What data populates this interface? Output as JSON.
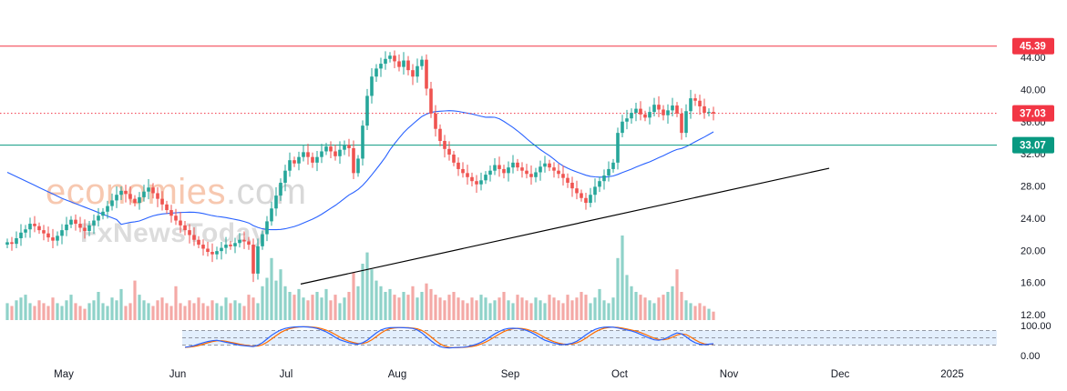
{
  "watermark": {
    "line1_a": "economies",
    "line1_b": ".com",
    "line2": "FxNewsToday"
  },
  "colors": {
    "up": "#26a69a",
    "down": "#ef5350",
    "up_vol": "#8fd2c9",
    "down_vol": "#f4a9a6",
    "ma": "#2962ff",
    "resistance": "#f23645",
    "support": "#089981",
    "current": "#f23645",
    "trendline": "#000000",
    "stoch_k": "#2962ff",
    "stoch_d": "#ff6d00",
    "stoch_band": "#e3effd"
  },
  "chart_data": {
    "type": "candlestick",
    "price_axis": {
      "min": 12,
      "max": 46,
      "ticks": [
        "44.00",
        "40.00",
        "36.00",
        "32.00",
        "28.00",
        "24.00",
        "20.00",
        "16.00",
        "12.00"
      ]
    },
    "oscillator_axis": {
      "ticks": [
        "100.00",
        "0.00"
      ],
      "upper_band": 80,
      "lower_band": 20
    },
    "time_axis": [
      "May",
      "Jun",
      "Jul",
      "Aug",
      "Sep",
      "Oct",
      "Nov",
      "Dec",
      "2025"
    ],
    "levels": [
      {
        "name": "resistance",
        "value": 45.39,
        "label": "45.39"
      },
      {
        "name": "current",
        "value": 37.03,
        "label": "37.03"
      },
      {
        "name": "support",
        "value": 33.07,
        "label": "33.07"
      }
    ],
    "trendline": {
      "from": [
        "Jul 5",
        15.8
      ],
      "to": [
        "Dec 5",
        30.2
      ]
    },
    "closes": [
      21.0,
      20.8,
      21.5,
      22.2,
      22.6,
      23.3,
      23.0,
      22.5,
      22.1,
      21.6,
      21.2,
      21.8,
      22.5,
      23.2,
      23.8,
      23.3,
      22.8,
      22.4,
      23.1,
      23.7,
      24.3,
      24.8,
      25.5,
      26.2,
      26.9,
      27.4,
      27.0,
      26.4,
      25.9,
      26.6,
      27.3,
      27.8,
      27.1,
      26.4,
      25.7,
      25.0,
      24.3,
      23.7,
      23.1,
      22.5,
      21.9,
      21.3,
      20.7,
      20.2,
      19.8,
      19.5,
      19.9,
      20.3,
      20.7,
      20.5,
      20.9,
      21.3,
      21.1,
      20.7,
      17.1,
      20.5,
      22.0,
      23.6,
      25.2,
      26.8,
      28.4,
      29.9,
      31.2,
      30.8,
      31.6,
      32.2,
      31.6,
      30.9,
      31.6,
      32.3,
      32.9,
      32.3,
      31.7,
      32.5,
      33.1,
      32.7,
      29.6,
      31.4,
      35.5,
      39.2,
      41.6,
      42.6,
      43.2,
      43.8,
      44.2,
      43.5,
      42.8,
      43.6,
      42.4,
      41.6,
      42.9,
      43.7,
      40.1,
      37.0,
      35.1,
      33.6,
      32.6,
      31.9,
      30.9,
      30.1,
      29.6,
      29.1,
      28.6,
      28.2,
      28.7,
      29.4,
      29.9,
      30.6,
      30.1,
      29.6,
      30.3,
      30.9,
      30.3,
      29.9,
      29.5,
      29.1,
      29.7,
      30.4,
      30.8,
      30.3,
      29.9,
      29.5,
      29.0,
      28.4,
      27.7,
      27.1,
      26.5,
      25.9,
      26.9,
      27.9,
      28.6,
      29.3,
      30.1,
      30.9,
      34.6,
      36.0,
      36.4,
      37.1,
      37.6,
      36.9,
      36.5,
      37.2,
      38.1,
      37.5,
      36.8,
      37.4,
      38.0,
      37.0,
      34.6,
      37.3,
      38.9,
      38.6,
      37.9,
      37.1,
      37.2,
      37.0
    ],
    "stochastic_k": [
      90,
      88,
      80,
      70,
      60,
      50,
      40,
      33,
      26,
      22,
      20,
      22,
      25,
      28,
      35,
      45,
      60,
      72,
      82,
      88,
      90,
      92,
      92,
      91,
      88,
      80,
      70,
      58,
      46,
      38,
      30,
      24,
      18,
      14,
      12,
      11,
      10,
      10,
      11,
      12,
      14,
      18,
      24,
      30,
      35,
      38,
      40,
      36,
      32,
      28,
      24,
      20,
      18,
      16,
      14,
      20,
      30,
      45,
      60,
      72,
      82,
      88,
      92,
      94,
      95,
      95,
      94,
      92,
      88,
      82,
      74,
      64,
      52,
      42,
      36,
      30,
      26,
      24,
      30,
      40,
      55,
      70,
      82,
      88,
      91,
      92,
      92,
      91,
      90,
      88,
      82,
      70,
      54,
      38,
      24,
      14,
      10,
      9,
      10,
      11,
      12,
      14,
      18,
      24,
      32,
      42,
      54,
      66,
      76,
      84,
      88,
      89,
      88,
      85,
      80,
      72,
      62,
      50,
      40,
      34,
      28,
      24,
      22,
      24,
      28,
      36,
      48,
      62,
      74,
      84,
      90,
      93,
      94,
      93,
      90,
      86,
      82,
      78,
      72,
      64,
      56,
      48,
      42,
      40,
      44,
      52,
      62,
      70,
      66,
      54,
      40,
      30,
      24,
      22,
      24,
      26
    ],
    "volumes": [
      6,
      5,
      7,
      8,
      9,
      6,
      5,
      7,
      6,
      5,
      8,
      6,
      5,
      7,
      9,
      6,
      5,
      4,
      6,
      7,
      10,
      6,
      5,
      8,
      7,
      11,
      5,
      6,
      14,
      9,
      7,
      6,
      5,
      7,
      8,
      6,
      5,
      12,
      6,
      5,
      7,
      6,
      8,
      6,
      5,
      7,
      6,
      5,
      8,
      6,
      7,
      6,
      5,
      9,
      8,
      6,
      12,
      15,
      22,
      14,
      18,
      12,
      10,
      9,
      11,
      8,
      7,
      9,
      10,
      8,
      11,
      7,
      9,
      6,
      8,
      10,
      17,
      12,
      20,
      24,
      18,
      14,
      12,
      10,
      11,
      9,
      8,
      10,
      9,
      12,
      8,
      10,
      13,
      11,
      9,
      8,
      7,
      9,
      10,
      8,
      7,
      6,
      8,
      7,
      9,
      8,
      6,
      7,
      8,
      10,
      7,
      6,
      9,
      8,
      7,
      6,
      8,
      7,
      6,
      9,
      8,
      7,
      6,
      9,
      7,
      8,
      10,
      9,
      6,
      8,
      11,
      7,
      6,
      8,
      22,
      30,
      16,
      12,
      10,
      9,
      8,
      7,
      6,
      8,
      9,
      10,
      12,
      18,
      10,
      7,
      6,
      5,
      6,
      5,
      4,
      3
    ]
  }
}
